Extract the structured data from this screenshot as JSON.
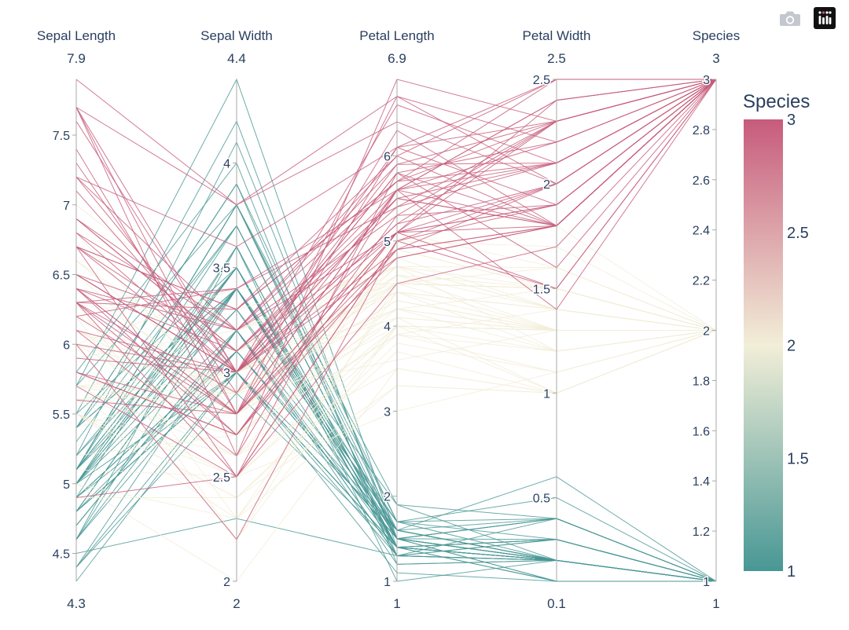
{
  "modebar": {
    "camera_icon": "camera-icon",
    "logo_icon": "plotly-logo-icon"
  },
  "chart_data": {
    "type": "parcoords",
    "dimensions": [
      {
        "label": "Sepal Length",
        "range": [
          4.3,
          7.9
        ],
        "range_min_label": "4.3",
        "range_max_label": "7.9",
        "ticks": [
          4.5,
          5,
          5.5,
          6,
          6.5,
          7,
          7.5
        ]
      },
      {
        "label": "Sepal Width",
        "range": [
          2,
          4.4
        ],
        "range_min_label": "2",
        "range_max_label": "4.4",
        "ticks": [
          2,
          2.5,
          3,
          3.5,
          4
        ]
      },
      {
        "label": "Petal Length",
        "range": [
          1,
          6.9
        ],
        "range_min_label": "1",
        "range_max_label": "6.9",
        "ticks": [
          1,
          2,
          3,
          4,
          5,
          6
        ]
      },
      {
        "label": "Petal Width",
        "range": [
          0.1,
          2.5
        ],
        "range_min_label": "0.1",
        "range_max_label": "2.5",
        "ticks": [
          0.5,
          1,
          1.5,
          2,
          2.5
        ]
      },
      {
        "label": "Species",
        "range": [
          1,
          3
        ],
        "range_min_label": "1",
        "range_max_label": "3",
        "ticks": [
          1,
          1.2,
          1.4,
          1.6,
          1.8,
          2,
          2.2,
          2.4,
          2.6,
          2.8,
          3
        ]
      }
    ],
    "colorscale": [
      [
        0,
        "#489795"
      ],
      [
        0.5,
        "#f2eed8"
      ],
      [
        1,
        "#c75b7c"
      ]
    ],
    "colorbar": {
      "title": "Species",
      "min": 1,
      "max": 3,
      "ticks": [
        1,
        1.5,
        2,
        2.5,
        3
      ]
    },
    "rows": [
      [
        5.1,
        3.5,
        1.4,
        0.2,
        1
      ],
      [
        4.9,
        3.0,
        1.4,
        0.2,
        1
      ],
      [
        4.7,
        3.2,
        1.3,
        0.2,
        1
      ],
      [
        4.6,
        3.1,
        1.5,
        0.2,
        1
      ],
      [
        5.0,
        3.6,
        1.4,
        0.2,
        1
      ],
      [
        5.4,
        3.9,
        1.7,
        0.4,
        1
      ],
      [
        4.6,
        3.4,
        1.4,
        0.3,
        1
      ],
      [
        5.0,
        3.4,
        1.5,
        0.2,
        1
      ],
      [
        4.4,
        2.9,
        1.4,
        0.2,
        1
      ],
      [
        4.9,
        3.1,
        1.5,
        0.1,
        1
      ],
      [
        5.4,
        3.7,
        1.5,
        0.2,
        1
      ],
      [
        4.8,
        3.4,
        1.6,
        0.2,
        1
      ],
      [
        4.8,
        3.0,
        1.4,
        0.1,
        1
      ],
      [
        4.3,
        3.0,
        1.1,
        0.1,
        1
      ],
      [
        5.8,
        4.0,
        1.2,
        0.2,
        1
      ],
      [
        5.7,
        4.4,
        1.5,
        0.4,
        1
      ],
      [
        5.4,
        3.9,
        1.3,
        0.4,
        1
      ],
      [
        5.1,
        3.5,
        1.4,
        0.3,
        1
      ],
      [
        5.7,
        3.8,
        1.7,
        0.3,
        1
      ],
      [
        5.1,
        3.8,
        1.5,
        0.3,
        1
      ],
      [
        5.4,
        3.4,
        1.7,
        0.2,
        1
      ],
      [
        5.1,
        3.7,
        1.5,
        0.4,
        1
      ],
      [
        4.6,
        3.6,
        1.0,
        0.2,
        1
      ],
      [
        5.1,
        3.3,
        1.7,
        0.5,
        1
      ],
      [
        4.8,
        3.4,
        1.9,
        0.2,
        1
      ],
      [
        5.0,
        3.0,
        1.6,
        0.2,
        1
      ],
      [
        5.0,
        3.4,
        1.6,
        0.4,
        1
      ],
      [
        5.2,
        3.5,
        1.5,
        0.2,
        1
      ],
      [
        5.2,
        3.4,
        1.4,
        0.2,
        1
      ],
      [
        4.7,
        3.2,
        1.6,
        0.2,
        1
      ],
      [
        4.8,
        3.1,
        1.6,
        0.2,
        1
      ],
      [
        5.4,
        3.4,
        1.5,
        0.4,
        1
      ],
      [
        5.2,
        4.1,
        1.5,
        0.1,
        1
      ],
      [
        5.5,
        4.2,
        1.4,
        0.2,
        1
      ],
      [
        4.9,
        3.1,
        1.5,
        0.2,
        1
      ],
      [
        5.0,
        3.2,
        1.2,
        0.2,
        1
      ],
      [
        5.5,
        3.5,
        1.3,
        0.2,
        1
      ],
      [
        4.9,
        3.6,
        1.4,
        0.1,
        1
      ],
      [
        4.4,
        3.0,
        1.3,
        0.2,
        1
      ],
      [
        5.1,
        3.4,
        1.5,
        0.2,
        1
      ],
      [
        5.0,
        3.5,
        1.3,
        0.3,
        1
      ],
      [
        4.5,
        2.3,
        1.3,
        0.3,
        1
      ],
      [
        4.4,
        3.2,
        1.3,
        0.2,
        1
      ],
      [
        5.0,
        3.5,
        1.6,
        0.6,
        1
      ],
      [
        5.1,
        3.8,
        1.9,
        0.4,
        1
      ],
      [
        4.8,
        3.0,
        1.4,
        0.3,
        1
      ],
      [
        5.1,
        3.8,
        1.6,
        0.2,
        1
      ],
      [
        4.6,
        3.2,
        1.4,
        0.2,
        1
      ],
      [
        5.3,
        3.7,
        1.5,
        0.2,
        1
      ],
      [
        5.0,
        3.3,
        1.4,
        0.2,
        1
      ],
      [
        7.0,
        3.2,
        4.7,
        1.4,
        2
      ],
      [
        6.4,
        3.2,
        4.5,
        1.5,
        2
      ],
      [
        6.9,
        3.1,
        4.9,
        1.5,
        2
      ],
      [
        5.5,
        2.3,
        4.0,
        1.3,
        2
      ],
      [
        6.5,
        2.8,
        4.6,
        1.5,
        2
      ],
      [
        5.7,
        2.8,
        4.5,
        1.3,
        2
      ],
      [
        6.3,
        3.3,
        4.7,
        1.6,
        2
      ],
      [
        4.9,
        2.4,
        3.3,
        1.0,
        2
      ],
      [
        6.6,
        2.9,
        4.6,
        1.3,
        2
      ],
      [
        5.2,
        2.7,
        3.9,
        1.4,
        2
      ],
      [
        5.0,
        2.0,
        3.5,
        1.0,
        2
      ],
      [
        5.9,
        3.0,
        4.2,
        1.5,
        2
      ],
      [
        6.0,
        2.2,
        4.0,
        1.0,
        2
      ],
      [
        6.1,
        2.9,
        4.7,
        1.4,
        2
      ],
      [
        5.6,
        2.9,
        3.6,
        1.3,
        2
      ],
      [
        6.7,
        3.1,
        4.4,
        1.4,
        2
      ],
      [
        5.6,
        3.0,
        4.5,
        1.5,
        2
      ],
      [
        5.8,
        2.7,
        4.1,
        1.0,
        2
      ],
      [
        6.2,
        2.2,
        4.5,
        1.5,
        2
      ],
      [
        5.6,
        2.5,
        3.9,
        1.1,
        2
      ],
      [
        5.9,
        3.2,
        4.8,
        1.8,
        2
      ],
      [
        6.1,
        2.8,
        4.0,
        1.3,
        2
      ],
      [
        6.3,
        2.5,
        4.9,
        1.5,
        2
      ],
      [
        6.1,
        2.8,
        4.7,
        1.2,
        2
      ],
      [
        6.4,
        2.9,
        4.3,
        1.3,
        2
      ],
      [
        6.6,
        3.0,
        4.4,
        1.4,
        2
      ],
      [
        6.8,
        2.8,
        4.8,
        1.4,
        2
      ],
      [
        6.7,
        3.0,
        5.0,
        1.7,
        2
      ],
      [
        6.0,
        2.9,
        4.5,
        1.5,
        2
      ],
      [
        5.7,
        2.6,
        3.5,
        1.0,
        2
      ],
      [
        5.5,
        2.4,
        3.8,
        1.1,
        2
      ],
      [
        5.5,
        2.4,
        3.7,
        1.0,
        2
      ],
      [
        5.8,
        2.7,
        3.9,
        1.2,
        2
      ],
      [
        6.0,
        2.7,
        5.1,
        1.6,
        2
      ],
      [
        5.4,
        3.0,
        4.5,
        1.5,
        2
      ],
      [
        6.0,
        3.4,
        4.5,
        1.6,
        2
      ],
      [
        6.7,
        3.1,
        4.7,
        1.5,
        2
      ],
      [
        6.3,
        2.3,
        4.4,
        1.3,
        2
      ],
      [
        5.6,
        3.0,
        4.1,
        1.3,
        2
      ],
      [
        5.5,
        2.5,
        4.0,
        1.3,
        2
      ],
      [
        5.5,
        2.6,
        4.4,
        1.2,
        2
      ],
      [
        6.1,
        3.0,
        4.6,
        1.4,
        2
      ],
      [
        5.8,
        2.6,
        4.0,
        1.2,
        2
      ],
      [
        5.0,
        2.3,
        3.3,
        1.0,
        2
      ],
      [
        5.6,
        2.7,
        4.2,
        1.3,
        2
      ],
      [
        5.7,
        3.0,
        4.2,
        1.2,
        2
      ],
      [
        5.7,
        2.9,
        4.2,
        1.3,
        2
      ],
      [
        6.2,
        2.9,
        4.3,
        1.3,
        2
      ],
      [
        5.1,
        2.5,
        3.0,
        1.1,
        2
      ],
      [
        5.7,
        2.8,
        4.1,
        1.3,
        2
      ],
      [
        6.3,
        3.3,
        6.0,
        2.5,
        3
      ],
      [
        5.8,
        2.7,
        5.1,
        1.9,
        3
      ],
      [
        7.1,
        3.0,
        5.9,
        2.1,
        3
      ],
      [
        6.3,
        2.9,
        5.6,
        1.8,
        3
      ],
      [
        6.5,
        3.0,
        5.8,
        2.2,
        3
      ],
      [
        7.6,
        3.0,
        6.6,
        2.1,
        3
      ],
      [
        4.9,
        2.5,
        4.5,
        1.7,
        3
      ],
      [
        7.3,
        2.9,
        6.3,
        1.8,
        3
      ],
      [
        6.7,
        2.5,
        5.8,
        1.8,
        3
      ],
      [
        7.2,
        3.6,
        6.1,
        2.5,
        3
      ],
      [
        6.5,
        3.2,
        5.1,
        2.0,
        3
      ],
      [
        6.4,
        2.7,
        5.3,
        1.9,
        3
      ],
      [
        6.8,
        3.0,
        5.5,
        2.1,
        3
      ],
      [
        5.7,
        2.5,
        5.0,
        2.0,
        3
      ],
      [
        5.8,
        2.8,
        5.1,
        2.4,
        3
      ],
      [
        6.4,
        3.2,
        5.3,
        2.3,
        3
      ],
      [
        6.5,
        3.0,
        5.5,
        1.8,
        3
      ],
      [
        7.7,
        3.8,
        6.7,
        2.2,
        3
      ],
      [
        7.7,
        2.6,
        6.9,
        2.3,
        3
      ],
      [
        6.0,
        2.2,
        5.0,
        1.5,
        3
      ],
      [
        6.9,
        3.2,
        5.7,
        2.3,
        3
      ],
      [
        5.6,
        2.8,
        4.9,
        2.0,
        3
      ],
      [
        7.7,
        2.8,
        6.7,
        2.0,
        3
      ],
      [
        6.3,
        2.7,
        4.9,
        1.8,
        3
      ],
      [
        6.7,
        3.3,
        5.7,
        2.1,
        3
      ],
      [
        7.2,
        3.2,
        6.0,
        1.8,
        3
      ],
      [
        6.2,
        2.8,
        4.8,
        1.8,
        3
      ],
      [
        6.1,
        3.0,
        4.9,
        1.8,
        3
      ],
      [
        6.4,
        2.8,
        5.6,
        2.1,
        3
      ],
      [
        7.2,
        3.0,
        5.8,
        1.6,
        3
      ],
      [
        7.4,
        2.8,
        6.1,
        1.9,
        3
      ],
      [
        7.9,
        3.8,
        6.4,
        2.0,
        3
      ],
      [
        6.4,
        2.8,
        5.6,
        2.2,
        3
      ],
      [
        6.3,
        2.8,
        5.1,
        1.5,
        3
      ],
      [
        6.1,
        2.6,
        5.6,
        1.4,
        3
      ],
      [
        7.7,
        3.0,
        6.1,
        2.3,
        3
      ],
      [
        6.3,
        3.4,
        5.6,
        2.4,
        3
      ],
      [
        6.4,
        3.1,
        5.5,
        1.8,
        3
      ],
      [
        6.0,
        3.0,
        4.8,
        1.8,
        3
      ],
      [
        6.9,
        3.1,
        5.4,
        2.1,
        3
      ],
      [
        6.7,
        3.1,
        5.6,
        2.4,
        3
      ],
      [
        6.9,
        3.1,
        5.1,
        2.3,
        3
      ],
      [
        5.8,
        2.7,
        5.1,
        1.9,
        3
      ],
      [
        6.8,
        3.2,
        5.9,
        2.3,
        3
      ],
      [
        6.7,
        3.3,
        5.7,
        2.5,
        3
      ],
      [
        6.7,
        3.0,
        5.2,
        2.3,
        3
      ],
      [
        6.3,
        2.5,
        5.0,
        1.9,
        3
      ],
      [
        6.5,
        3.0,
        5.2,
        2.0,
        3
      ],
      [
        6.2,
        3.4,
        5.4,
        2.3,
        3
      ],
      [
        5.9,
        3.0,
        5.1,
        1.8,
        3
      ]
    ]
  }
}
